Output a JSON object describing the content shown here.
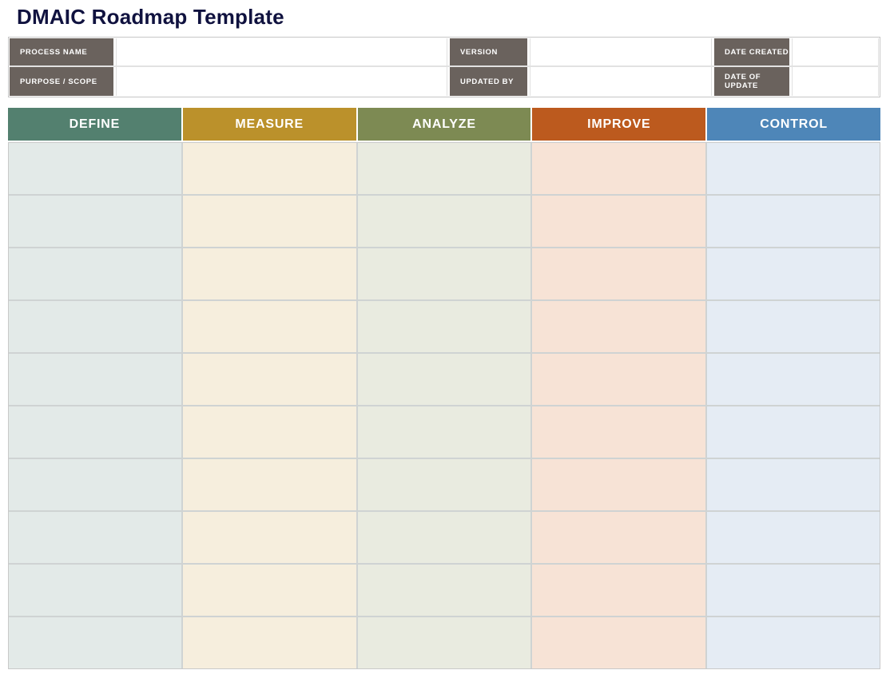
{
  "title": "DMAIC Roadmap Template",
  "colors": {
    "title_text": "#10123F",
    "meta_label_bg": "#6A625D",
    "meta_label_text": "#FFFFFF",
    "grid_line": "#CFD3D3",
    "header_text": "#FFFFFF"
  },
  "meta": {
    "fields": [
      {
        "id": "process-name",
        "label": "PROCESS NAME",
        "value": ""
      },
      {
        "id": "version",
        "label": "VERSION",
        "value": ""
      },
      {
        "id": "date-created",
        "label": "DATE CREATED",
        "value": ""
      },
      {
        "id": "purpose-scope",
        "label": "PURPOSE / SCOPE",
        "value": ""
      },
      {
        "id": "updated-by",
        "label": "UPDATED BY",
        "value": ""
      },
      {
        "id": "date-of-update",
        "label": "DATE OF UPDATE",
        "value": ""
      }
    ]
  },
  "table": {
    "row_count": 10,
    "columns": [
      {
        "id": "define",
        "label": "DEFINE",
        "header_bg": "#53806F",
        "cell_bg": "#E3EAE8"
      },
      {
        "id": "measure",
        "label": "MEASURE",
        "header_bg": "#BB912B",
        "cell_bg": "#F6EEDD"
      },
      {
        "id": "analyze",
        "label": "ANALYZE",
        "header_bg": "#7D8A53",
        "cell_bg": "#E9EBE0"
      },
      {
        "id": "improve",
        "label": "IMPROVE",
        "header_bg": "#BC5A1E",
        "cell_bg": "#F7E3D6"
      },
      {
        "id": "control",
        "label": "CONTROL",
        "header_bg": "#4E86B8",
        "cell_bg": "#E5ECF4"
      }
    ]
  }
}
